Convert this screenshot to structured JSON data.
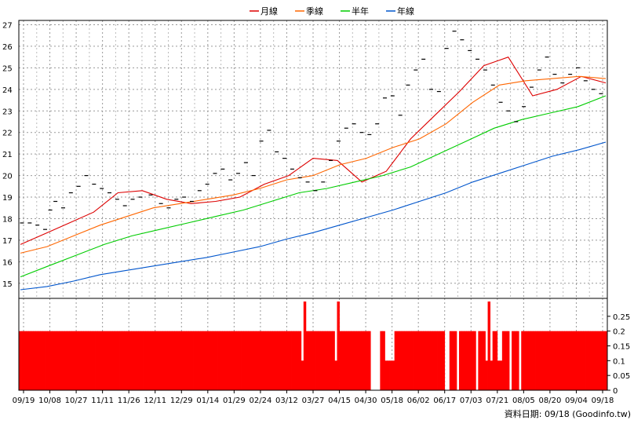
{
  "chart_data": [
    {
      "type": "line",
      "legend": [
        {
          "name": "月線",
          "color": "#dd0000"
        },
        {
          "name": "季線",
          "color": "#ff6600"
        },
        {
          "name": "半年",
          "color": "#00cc00"
        },
        {
          "name": "年線",
          "color": "#0055cc"
        }
      ],
      "legend_position": "top-center",
      "x_tick_labels": [
        "09/19",
        "10/08",
        "10/27",
        "11/11",
        "11/26",
        "12/11",
        "12/29",
        "01/14",
        "01/29",
        "02/24",
        "03/12",
        "03/27",
        "04/15",
        "04/30",
        "05/18",
        "06/02",
        "06/17",
        "07/03",
        "07/21",
        "08/05",
        "08/20",
        "09/04",
        "09/18"
      ],
      "ylim": [
        14.3,
        27.2
      ],
      "y_ticks": [
        15,
        16,
        17,
        18,
        19,
        20,
        21,
        22,
        23,
        24,
        25,
        26,
        27
      ],
      "grid": true,
      "series": [
        {
          "name": "月線",
          "color": "#dd0000",
          "values": [
            16.8,
            17.3,
            17.8,
            18.3,
            19.2,
            19.3,
            18.9,
            18.7,
            18.8,
            19.0,
            19.6,
            20.0,
            20.8,
            20.7,
            19.7,
            20.2,
            21.7,
            22.8,
            23.9,
            25.1,
            25.5,
            23.7,
            24.0,
            24.6,
            24.3
          ]
        },
        {
          "name": "季線",
          "color": "#ff6600",
          "values": [
            16.4,
            16.7,
            17.2,
            17.7,
            18.1,
            18.5,
            18.7,
            18.9,
            19.1,
            19.4,
            19.8,
            20.0,
            20.5,
            20.8,
            21.3,
            21.7,
            22.4,
            23.4,
            24.2,
            24.4,
            24.5,
            24.6,
            24.5
          ]
        },
        {
          "name": "半年",
          "color": "#00cc00",
          "values": [
            15.3,
            15.8,
            16.3,
            16.8,
            17.2,
            17.5,
            17.8,
            18.1,
            18.4,
            18.8,
            19.2,
            19.4,
            19.7,
            20.0,
            20.4,
            21.0,
            21.6,
            22.2,
            22.6,
            22.9,
            23.2,
            23.7
          ]
        },
        {
          "name": "年線",
          "color": "#0055cc",
          "values": [
            14.7,
            14.85,
            15.1,
            15.4,
            15.6,
            15.8,
            16.0,
            16.2,
            16.45,
            16.7,
            17.05,
            17.35,
            17.7,
            18.05,
            18.4,
            18.8,
            19.2,
            19.7,
            20.1,
            20.5,
            20.9,
            21.2,
            21.55
          ]
        }
      ],
      "price_bars": [
        {
          "x": 0,
          "v": 17.8
        },
        {
          "x": 0.3,
          "v": 17.8
        },
        {
          "x": 0.6,
          "v": 17.7
        },
        {
          "x": 0.9,
          "v": 17.5
        },
        {
          "x": 1.1,
          "v": 18.4
        },
        {
          "x": 1.3,
          "v": 18.8
        },
        {
          "x": 1.6,
          "v": 18.5
        },
        {
          "x": 1.9,
          "v": 19.2
        },
        {
          "x": 2.2,
          "v": 19.5
        },
        {
          "x": 2.5,
          "v": 20.0
        },
        {
          "x": 2.8,
          "v": 19.6
        },
        {
          "x": 3.1,
          "v": 19.4
        },
        {
          "x": 3.4,
          "v": 19.2
        },
        {
          "x": 3.7,
          "v": 18.9
        },
        {
          "x": 4.0,
          "v": 18.6
        },
        {
          "x": 4.3,
          "v": 18.9
        },
        {
          "x": 4.6,
          "v": 19.0
        },
        {
          "x": 5.0,
          "v": 19.1
        },
        {
          "x": 5.4,
          "v": 18.7
        },
        {
          "x": 5.7,
          "v": 18.5
        },
        {
          "x": 6.0,
          "v": 18.9
        },
        {
          "x": 6.3,
          "v": 19.0
        },
        {
          "x": 6.6,
          "v": 18.8
        },
        {
          "x": 6.9,
          "v": 19.3
        },
        {
          "x": 7.2,
          "v": 19.6
        },
        {
          "x": 7.5,
          "v": 20.1
        },
        {
          "x": 7.8,
          "v": 20.3
        },
        {
          "x": 8.1,
          "v": 19.8
        },
        {
          "x": 8.4,
          "v": 20.1
        },
        {
          "x": 8.7,
          "v": 20.6
        },
        {
          "x": 9.0,
          "v": 20.0
        },
        {
          "x": 9.3,
          "v": 21.6
        },
        {
          "x": 9.6,
          "v": 22.1
        },
        {
          "x": 9.9,
          "v": 21.1
        },
        {
          "x": 10.2,
          "v": 20.8
        },
        {
          "x": 10.5,
          "v": 20.3
        },
        {
          "x": 10.8,
          "v": 19.9
        },
        {
          "x": 11.1,
          "v": 19.7
        },
        {
          "x": 11.4,
          "v": 19.3
        },
        {
          "x": 11.7,
          "v": 19.7
        },
        {
          "x": 12.0,
          "v": 20.7
        },
        {
          "x": 12.3,
          "v": 21.6
        },
        {
          "x": 12.6,
          "v": 22.2
        },
        {
          "x": 12.9,
          "v": 22.4
        },
        {
          "x": 13.2,
          "v": 22.0
        },
        {
          "x": 13.5,
          "v": 21.9
        },
        {
          "x": 13.8,
          "v": 22.4
        },
        {
          "x": 14.1,
          "v": 23.6
        },
        {
          "x": 14.4,
          "v": 23.7
        },
        {
          "x": 14.7,
          "v": 22.8
        },
        {
          "x": 15.0,
          "v": 24.2
        },
        {
          "x": 15.3,
          "v": 24.9
        },
        {
          "x": 15.6,
          "v": 25.4
        },
        {
          "x": 15.9,
          "v": 24.0
        },
        {
          "x": 16.2,
          "v": 23.9
        },
        {
          "x": 16.5,
          "v": 25.9
        },
        {
          "x": 16.8,
          "v": 26.7
        },
        {
          "x": 17.1,
          "v": 26.3
        },
        {
          "x": 17.4,
          "v": 25.8
        },
        {
          "x": 17.7,
          "v": 25.4
        },
        {
          "x": 18.0,
          "v": 24.9
        },
        {
          "x": 18.3,
          "v": 24.2
        },
        {
          "x": 18.6,
          "v": 23.4
        },
        {
          "x": 18.9,
          "v": 23.0
        },
        {
          "x": 19.2,
          "v": 22.5
        },
        {
          "x": 19.5,
          "v": 23.2
        },
        {
          "x": 19.8,
          "v": 24.1
        },
        {
          "x": 20.1,
          "v": 24.9
        },
        {
          "x": 20.4,
          "v": 25.5
        },
        {
          "x": 20.7,
          "v": 24.7
        },
        {
          "x": 21.0,
          "v": 24.3
        },
        {
          "x": 21.3,
          "v": 24.7
        },
        {
          "x": 21.6,
          "v": 25.0
        },
        {
          "x": 21.9,
          "v": 24.4
        },
        {
          "x": 22.2,
          "v": 24.0
        },
        {
          "x": 22.5,
          "v": 23.8
        }
      ]
    },
    {
      "type": "bar",
      "ylim": [
        0,
        0.3
      ],
      "y_ticks": [
        "0.25",
        "0.2",
        "0.15",
        "0.1",
        "0.05",
        "0"
      ],
      "bar_color": "#ff0000",
      "values_note": "",
      "values": [
        0.2,
        0.2,
        0.2,
        0.2,
        0.2,
        0.2,
        0.2,
        0.2,
        0.2,
        0.2,
        0.2,
        0.2,
        0.2,
        0.2,
        0.2,
        0.2,
        0.2,
        0.2,
        0.2,
        0.2,
        0.2,
        0.2,
        0.2,
        0.2,
        0.2,
        0.2,
        0.2,
        0.2,
        0.2,
        0.2,
        0.2,
        0.2,
        0.2,
        0.2,
        0.2,
        0.2,
        0.2,
        0.2,
        0.2,
        0.2,
        0.2,
        0.2,
        0.2,
        0.2,
        0.2,
        0.2,
        0.2,
        0.2,
        0.2,
        0.2,
        0.2,
        0.2,
        0.2,
        0.2,
        0.2,
        0.2,
        0.2,
        0.2,
        0.2,
        0.2,
        0.2,
        0.2,
        0.2,
        0.2,
        0.2,
        0.2,
        0.2,
        0.2,
        0.2,
        0.2,
        0.2,
        0.2,
        0.2,
        0.2,
        0.2,
        0.2,
        0.2,
        0.2,
        0.2,
        0.2,
        0.2,
        0.2,
        0.2,
        0.2,
        0.2,
        0.2,
        0.2,
        0.2,
        0.2,
        0.2,
        0.2,
        0.2,
        0.2,
        0.2,
        0.2,
        0.2,
        0.2,
        0.2,
        0.2,
        0.2,
        0.2,
        0.2,
        0.2,
        0.2,
        0.2,
        0.2,
        0.2,
        0.2,
        0.2,
        0.2,
        0.2,
        0.2,
        0.2,
        0.2,
        0.2,
        0.2,
        0.2,
        0.2,
        0.2,
        0.2,
        0.2,
        0.2,
        0.2,
        0.2,
        0.2,
        0.2,
        0.2,
        0.2,
        0.2,
        0.2,
        0.2,
        0.2,
        0.2,
        0.2,
        0.2,
        0.2,
        0.2,
        0.2,
        0.2,
        0.2,
        0.2,
        0.2,
        0.2,
        0.2,
        0.2,
        0.2,
        0.2,
        0.2,
        0.2,
        0.2,
        0.2,
        0.2,
        0.2,
        0.2,
        0.2,
        0.2,
        0.2,
        0.2,
        0.2,
        0.2,
        0.2,
        0.2,
        0.2,
        0.2,
        0.2,
        0.2,
        0.2,
        0.2,
        0.2,
        0.2,
        0.2,
        0.2,
        0.2,
        0.2,
        0.2,
        0.2,
        0.2,
        0.2,
        0.2,
        0.2,
        0.2,
        0.2,
        0.2,
        0.2,
        0.2,
        0.2,
        0.2,
        0.2,
        0.2,
        0.2,
        0.2,
        0.2,
        0.2,
        0.2,
        0.2,
        0.2,
        0.2,
        0.2,
        0.2,
        0.2,
        0.2,
        0.2,
        0.2,
        0.2,
        0.2,
        0.2,
        0.2,
        0.2,
        0.2,
        0.2,
        0.2,
        0.2,
        0.2,
        0.2,
        0.2,
        0.2,
        0.2,
        0.2,
        0.2,
        0.2,
        0.2,
        0.2,
        0.2,
        0.2,
        0.2,
        0.2,
        0.2,
        0.2,
        0.2,
        0.2,
        0.2,
        0.2,
        0.2,
        0.2,
        0.2,
        0.2,
        0.2,
        0.2,
        0.2,
        0.2,
        0.2,
        0.2,
        0.2,
        0.2,
        0.2,
        0.2
      ],
      "overrides": [
        {
          "i": 118,
          "v": 0.1
        },
        {
          "i": 119,
          "v": 0.3
        },
        {
          "i": 120,
          "v": 0.2
        },
        {
          "i": 132,
          "v": 0.1
        },
        {
          "i": 133,
          "v": 0.3
        },
        {
          "i": 147,
          "v": 0.0
        },
        {
          "i": 148,
          "v": 0.0
        },
        {
          "i": 149,
          "v": 0.0
        },
        {
          "i": 150,
          "v": 0.0
        },
        {
          "i": 153,
          "v": 0.1
        },
        {
          "i": 154,
          "v": 0.1
        },
        {
          "i": 155,
          "v": 0.1
        },
        {
          "i": 156,
          "v": 0.1
        },
        {
          "i": 178,
          "v": 0.0
        },
        {
          "i": 179,
          "v": 0.0
        },
        {
          "i": 183,
          "v": 0.0
        },
        {
          "i": 191,
          "v": 0.0
        },
        {
          "i": 195,
          "v": 0.1
        },
        {
          "i": 196,
          "v": 0.3
        },
        {
          "i": 197,
          "v": 0.1
        },
        {
          "i": 198,
          "v": 0.2
        },
        {
          "i": 200,
          "v": 0.1
        },
        {
          "i": 201,
          "v": 0.1
        },
        {
          "i": 202,
          "v": 0.2
        },
        {
          "i": 205,
          "v": 0.0
        },
        {
          "i": 209,
          "v": 0.0
        }
      ]
    }
  ],
  "source_label": "資料日期: 09/18  (Goodinfo.tw)"
}
